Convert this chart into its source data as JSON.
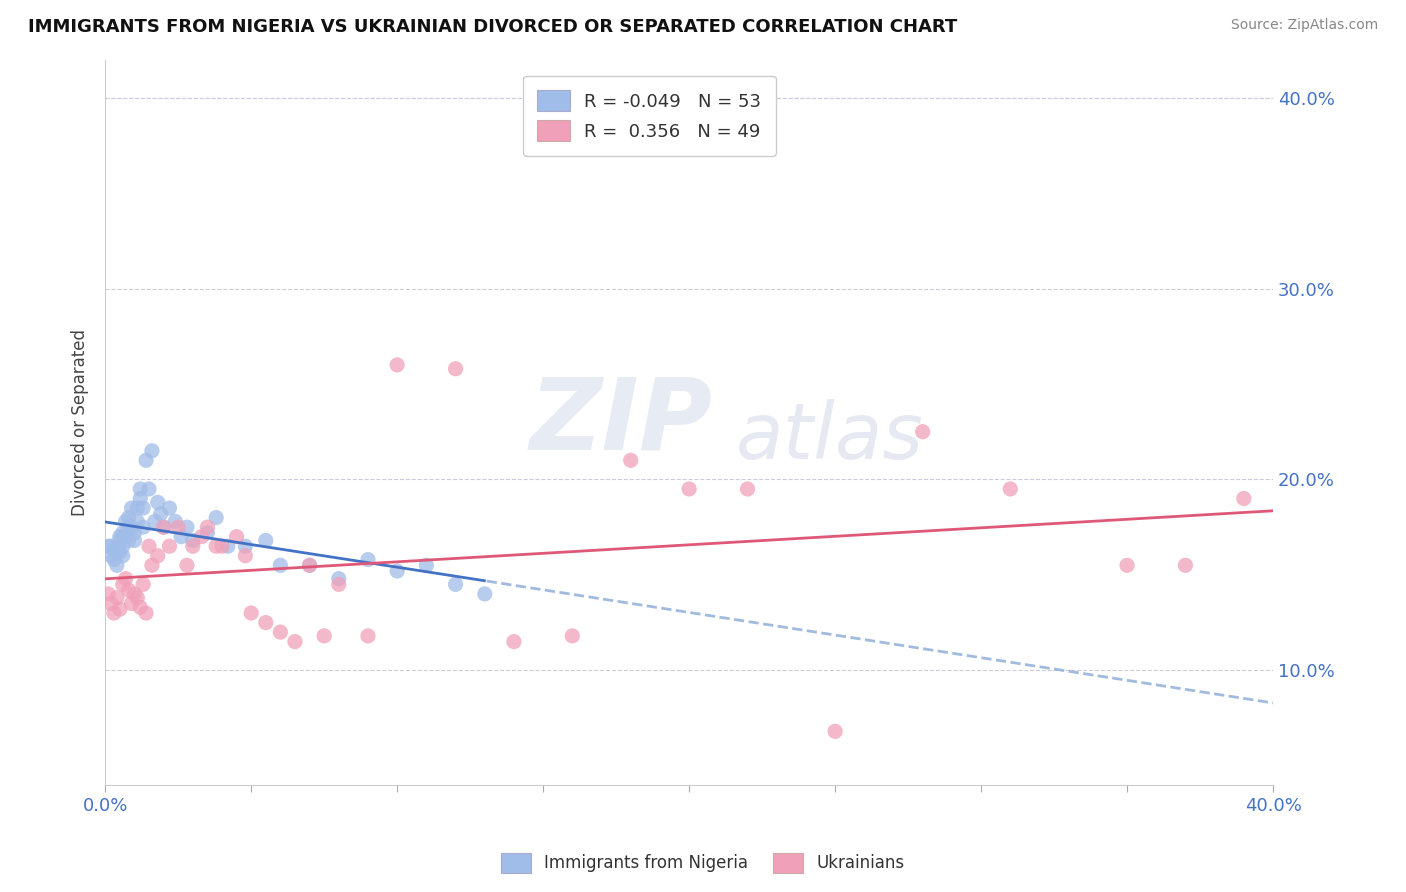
{
  "title": "IMMIGRANTS FROM NIGERIA VS UKRAINIAN DIVORCED OR SEPARATED CORRELATION CHART",
  "source": "Source: ZipAtlas.com",
  "ylabel": "Divorced or Separated",
  "xlabel": "",
  "watermark_zip": "ZIP",
  "watermark_atlas": "atlas",
  "xlim": [
    0.0,
    0.4
  ],
  "ylim": [
    0.04,
    0.42
  ],
  "xtick_positions": [
    0.0,
    0.05,
    0.1,
    0.15,
    0.2,
    0.25,
    0.3,
    0.35,
    0.4
  ],
  "ytick_positions": [
    0.1,
    0.2,
    0.3,
    0.4
  ],
  "legend_r_nigeria": "-0.049",
  "legend_n_nigeria": "53",
  "legend_r_ukraine": "0.356",
  "legend_n_ukraine": "49",
  "color_nigeria": "#a0bce8",
  "color_ukraine": "#f0a0b8",
  "trendline_nigeria_color": "#4472c4",
  "trendline_ukraine_color": "#e05878",
  "trendline_nigeria_dashed_color": "#8aaad8",
  "background_color": "#ffffff",
  "nigeria_x": [
    0.001,
    0.002,
    0.002,
    0.003,
    0.003,
    0.004,
    0.004,
    0.005,
    0.005,
    0.005,
    0.006,
    0.006,
    0.006,
    0.007,
    0.007,
    0.008,
    0.008,
    0.008,
    0.009,
    0.009,
    0.01,
    0.01,
    0.011,
    0.011,
    0.012,
    0.012,
    0.013,
    0.013,
    0.014,
    0.015,
    0.016,
    0.017,
    0.018,
    0.019,
    0.02,
    0.022,
    0.024,
    0.026,
    0.028,
    0.03,
    0.035,
    0.038,
    0.042,
    0.048,
    0.055,
    0.06,
    0.07,
    0.08,
    0.09,
    0.1,
    0.11,
    0.12,
    0.13
  ],
  "nigeria_y": [
    0.165,
    0.165,
    0.16,
    0.163,
    0.158,
    0.162,
    0.155,
    0.168,
    0.162,
    0.17,
    0.165,
    0.16,
    0.172,
    0.17,
    0.178,
    0.168,
    0.175,
    0.18,
    0.175,
    0.185,
    0.172,
    0.168,
    0.178,
    0.185,
    0.19,
    0.195,
    0.185,
    0.175,
    0.21,
    0.195,
    0.215,
    0.178,
    0.188,
    0.182,
    0.175,
    0.185,
    0.178,
    0.17,
    0.175,
    0.168,
    0.172,
    0.18,
    0.165,
    0.165,
    0.168,
    0.155,
    0.155,
    0.148,
    0.158,
    0.152,
    0.155,
    0.145,
    0.14
  ],
  "ukraine_x": [
    0.001,
    0.002,
    0.003,
    0.004,
    0.005,
    0.006,
    0.007,
    0.008,
    0.009,
    0.01,
    0.011,
    0.012,
    0.013,
    0.014,
    0.015,
    0.016,
    0.018,
    0.02,
    0.022,
    0.025,
    0.028,
    0.03,
    0.033,
    0.035,
    0.038,
    0.04,
    0.045,
    0.048,
    0.05,
    0.055,
    0.06,
    0.065,
    0.07,
    0.075,
    0.08,
    0.09,
    0.1,
    0.12,
    0.14,
    0.16,
    0.18,
    0.2,
    0.22,
    0.25,
    0.28,
    0.31,
    0.35,
    0.37,
    0.39
  ],
  "ukraine_y": [
    0.14,
    0.135,
    0.13,
    0.138,
    0.132,
    0.145,
    0.148,
    0.142,
    0.135,
    0.14,
    0.138,
    0.133,
    0.145,
    0.13,
    0.165,
    0.155,
    0.16,
    0.175,
    0.165,
    0.175,
    0.155,
    0.165,
    0.17,
    0.175,
    0.165,
    0.165,
    0.17,
    0.16,
    0.13,
    0.125,
    0.12,
    0.115,
    0.155,
    0.118,
    0.145,
    0.118,
    0.26,
    0.258,
    0.115,
    0.118,
    0.21,
    0.195,
    0.195,
    0.068,
    0.225,
    0.195,
    0.155,
    0.155,
    0.19
  ]
}
